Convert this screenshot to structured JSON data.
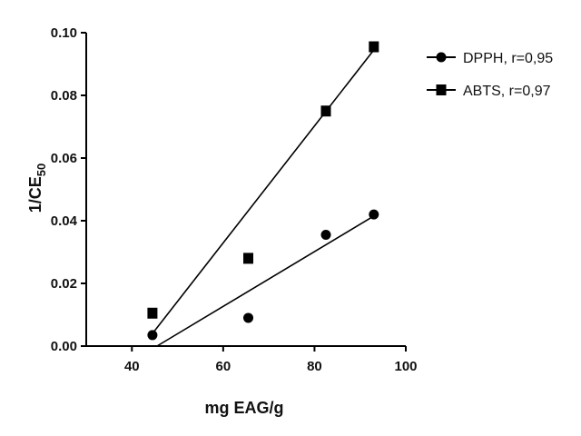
{
  "chart_data": {
    "type": "scatter",
    "xlabel": "mg EAG/g",
    "ylabel": {
      "main": "1/CE",
      "sub": "50"
    },
    "xlim": [
      30,
      100
    ],
    "ylim": [
      0,
      0.1
    ],
    "xticks": [
      40,
      60,
      80,
      100
    ],
    "xtick_labels": [
      "40",
      "60",
      "80",
      "100"
    ],
    "yticks": [
      0,
      0.02,
      0.04,
      0.06,
      0.08,
      0.1
    ],
    "ytick_labels": [
      "0.00",
      "0.02",
      "0.04",
      "0.06",
      "0.08",
      "0.10"
    ],
    "legend_position": "top-right, outside plot",
    "grid": false,
    "series": [
      {
        "name": "DPPH, r=0,95",
        "marker": "circle",
        "x": [
          44.5,
          65.5,
          82.5,
          93.0
        ],
        "y": [
          0.0035,
          0.009,
          0.0355,
          0.042
        ],
        "fit": {
          "x": [
            45.5,
            93.0
          ],
          "y": [
            0.0,
            0.0415
          ]
        }
      },
      {
        "name": "ABTS, r=0,97",
        "marker": "square",
        "x": [
          44.5,
          65.5,
          82.5,
          93.0
        ],
        "y": [
          0.0105,
          0.028,
          0.075,
          0.0955
        ],
        "fit": {
          "x": [
            44.5,
            93.0
          ],
          "y": [
            0.004,
            0.0945
          ]
        }
      }
    ]
  }
}
